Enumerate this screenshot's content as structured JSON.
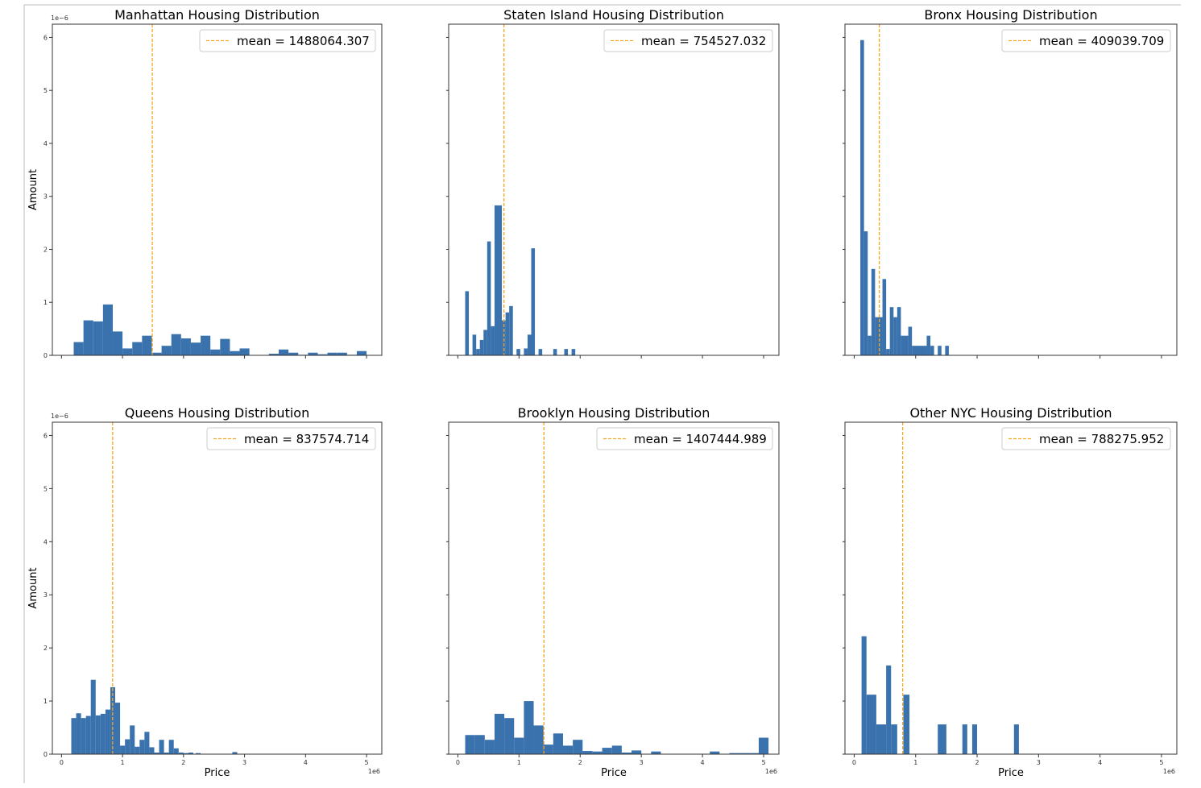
{
  "colors": {
    "bar": "#3a72ad",
    "mean_line": "#f5a623",
    "frame": "#333333"
  },
  "y_offset_label": "1e−6",
  "x_offset_label": "1e6",
  "ylabel": "Amount",
  "xlabel": "Price",
  "chart_data": [
    {
      "type": "bar",
      "title": "Manhattan Housing Distribution",
      "legend": "mean = 1488064.307",
      "legend_position": "top-right",
      "mean": 1488064.307,
      "xlim": [
        -0.15,
        5.25
      ],
      "ylim": [
        0,
        6.25
      ],
      "xticks": [],
      "yticks": [
        0,
        1,
        2,
        3,
        4,
        5,
        6
      ],
      "show_ylabel": true,
      "show_xlabel": false,
      "bins": [
        [
          0.2,
          0.36,
          0.25
        ],
        [
          0.36,
          0.52,
          0.66
        ],
        [
          0.52,
          0.68,
          0.64
        ],
        [
          0.68,
          0.84,
          0.96
        ],
        [
          0.84,
          1.0,
          0.45
        ],
        [
          1.0,
          1.16,
          0.13
        ],
        [
          1.16,
          1.32,
          0.25
        ],
        [
          1.32,
          1.48,
          0.37
        ],
        [
          1.48,
          1.64,
          0.05
        ],
        [
          1.64,
          1.8,
          0.18
        ],
        [
          1.8,
          1.96,
          0.4
        ],
        [
          1.96,
          2.12,
          0.32
        ],
        [
          2.12,
          2.28,
          0.24
        ],
        [
          2.28,
          2.44,
          0.37
        ],
        [
          2.44,
          2.6,
          0.11
        ],
        [
          2.6,
          2.76,
          0.31
        ],
        [
          2.76,
          2.92,
          0.08
        ],
        [
          2.92,
          3.08,
          0.13
        ],
        [
          3.4,
          3.56,
          0.03
        ],
        [
          3.56,
          3.72,
          0.11
        ],
        [
          3.72,
          3.88,
          0.05
        ],
        [
          3.88,
          4.04,
          0.01
        ],
        [
          4.04,
          4.2,
          0.05
        ],
        [
          4.2,
          4.36,
          0.02
        ],
        [
          4.36,
          4.52,
          0.05
        ],
        [
          4.52,
          4.68,
          0.05
        ],
        [
          4.68,
          4.84,
          0.01
        ],
        [
          4.84,
          5.0,
          0.08
        ]
      ]
    },
    {
      "type": "bar",
      "title": "Staten Island Housing Distribution",
      "legend": "mean = 754527.032",
      "legend_position": "top-right",
      "mean": 754527.032,
      "xlim": [
        -0.15,
        5.25
      ],
      "ylim": [
        0,
        6.25
      ],
      "xticks": [],
      "yticks": [],
      "show_ylabel": false,
      "show_xlabel": false,
      "bins": [
        [
          0.12,
          0.18,
          1.21
        ],
        [
          0.18,
          0.24,
          0.0
        ],
        [
          0.24,
          0.3,
          0.39
        ],
        [
          0.3,
          0.36,
          0.12
        ],
        [
          0.36,
          0.42,
          0.29
        ],
        [
          0.42,
          0.48,
          0.48
        ],
        [
          0.48,
          0.54,
          2.15
        ],
        [
          0.54,
          0.6,
          0.55
        ],
        [
          0.6,
          0.72,
          2.83
        ],
        [
          0.72,
          0.78,
          0.66
        ],
        [
          0.78,
          0.84,
          0.81
        ],
        [
          0.84,
          0.9,
          0.93
        ],
        [
          0.96,
          1.02,
          0.12
        ],
        [
          1.08,
          1.14,
          0.13
        ],
        [
          1.14,
          1.2,
          0.39
        ],
        [
          1.2,
          1.26,
          2.02
        ],
        [
          1.32,
          1.38,
          0.12
        ],
        [
          1.56,
          1.62,
          0.12
        ],
        [
          1.74,
          1.8,
          0.12
        ],
        [
          1.86,
          1.92,
          0.12
        ]
      ]
    },
    {
      "type": "bar",
      "title": "Bronx Housing Distribution",
      "legend": "mean = 409039.709",
      "legend_position": "top-right",
      "mean": 409039.709,
      "xlim": [
        -0.15,
        5.25
      ],
      "ylim": [
        0,
        6.25
      ],
      "xticks": [],
      "yticks": [],
      "show_ylabel": false,
      "show_xlabel": false,
      "bins": [
        [
          0.1,
          0.16,
          5.95
        ],
        [
          0.16,
          0.22,
          2.34
        ],
        [
          0.22,
          0.28,
          0.37
        ],
        [
          0.28,
          0.34,
          1.63
        ],
        [
          0.34,
          0.46,
          0.72
        ],
        [
          0.46,
          0.52,
          1.44
        ],
        [
          0.52,
          0.58,
          0.12
        ],
        [
          0.58,
          0.64,
          0.91
        ],
        [
          0.64,
          0.7,
          0.72
        ],
        [
          0.7,
          0.76,
          0.91
        ],
        [
          0.76,
          0.82,
          0.37
        ],
        [
          0.82,
          0.88,
          0.37
        ],
        [
          0.88,
          0.94,
          0.54
        ],
        [
          0.94,
          1.18,
          0.18
        ],
        [
          1.18,
          1.24,
          0.37
        ],
        [
          1.24,
          1.3,
          0.18
        ],
        [
          1.36,
          1.42,
          0.18
        ],
        [
          1.48,
          1.54,
          0.18
        ]
      ]
    },
    {
      "type": "bar",
      "title": "Queens Housing Distribution",
      "legend": "mean = 837574.714",
      "legend_position": "top-right",
      "mean": 837574.714,
      "xlim": [
        -0.15,
        5.25
      ],
      "ylim": [
        0,
        6.25
      ],
      "xticks": [
        0,
        1,
        2,
        3,
        4,
        5
      ],
      "yticks": [
        0,
        1,
        2,
        3,
        4,
        5,
        6
      ],
      "show_ylabel": true,
      "show_xlabel": true,
      "bins": [
        [
          0.16,
          0.24,
          0.68
        ],
        [
          0.24,
          0.32,
          0.77
        ],
        [
          0.32,
          0.4,
          0.68
        ],
        [
          0.4,
          0.48,
          0.72
        ],
        [
          0.48,
          0.56,
          1.4
        ],
        [
          0.56,
          0.64,
          0.73
        ],
        [
          0.64,
          0.72,
          0.76
        ],
        [
          0.72,
          0.8,
          0.84
        ],
        [
          0.8,
          0.88,
          1.26
        ],
        [
          0.88,
          0.96,
          0.97
        ],
        [
          0.96,
          1.04,
          0.16
        ],
        [
          1.04,
          1.12,
          0.28
        ],
        [
          1.12,
          1.2,
          0.54
        ],
        [
          1.2,
          1.28,
          0.14
        ],
        [
          1.28,
          1.36,
          0.27
        ],
        [
          1.36,
          1.44,
          0.42
        ],
        [
          1.44,
          1.52,
          0.13
        ],
        [
          1.52,
          1.6,
          0.03
        ],
        [
          1.6,
          1.68,
          0.27
        ],
        [
          1.68,
          1.76,
          0.03
        ],
        [
          1.76,
          1.84,
          0.27
        ],
        [
          1.84,
          1.92,
          0.11
        ],
        [
          1.92,
          2.0,
          0.03
        ],
        [
          2.0,
          2.08,
          0.02
        ],
        [
          2.08,
          2.16,
          0.03
        ],
        [
          2.2,
          2.28,
          0.02
        ],
        [
          2.8,
          2.88,
          0.04
        ]
      ]
    },
    {
      "type": "bar",
      "title": "Brooklyn Housing Distribution",
      "legend": "mean = 1407444.989",
      "legend_position": "top-right",
      "mean": 1407444.989,
      "xlim": [
        -0.15,
        5.25
      ],
      "ylim": [
        0,
        6.25
      ],
      "xticks": [
        0,
        1,
        2,
        3,
        4,
        5
      ],
      "yticks": [],
      "show_ylabel": false,
      "show_xlabel": true,
      "bins": [
        [
          0.12,
          0.28,
          0.36
        ],
        [
          0.28,
          0.44,
          0.36
        ],
        [
          0.44,
          0.6,
          0.27
        ],
        [
          0.6,
          0.76,
          0.76
        ],
        [
          0.76,
          0.92,
          0.68
        ],
        [
          0.92,
          1.08,
          0.31
        ],
        [
          1.08,
          1.24,
          1.0
        ],
        [
          1.24,
          1.4,
          0.54
        ],
        [
          1.4,
          1.56,
          0.18
        ],
        [
          1.56,
          1.72,
          0.39
        ],
        [
          1.72,
          1.88,
          0.16
        ],
        [
          1.88,
          2.04,
          0.27
        ],
        [
          2.04,
          2.2,
          0.06
        ],
        [
          2.2,
          2.36,
          0.05
        ],
        [
          2.36,
          2.52,
          0.12
        ],
        [
          2.52,
          2.68,
          0.16
        ],
        [
          2.68,
          2.84,
          0.03
        ],
        [
          2.84,
          3.0,
          0.07
        ],
        [
          3.16,
          3.32,
          0.05
        ],
        [
          4.12,
          4.28,
          0.05
        ],
        [
          4.44,
          4.6,
          0.02
        ],
        [
          4.6,
          4.76,
          0.02
        ],
        [
          4.76,
          4.92,
          0.02
        ],
        [
          4.92,
          5.08,
          0.31
        ]
      ]
    },
    {
      "type": "bar",
      "title": "Other NYC Housing Distribution",
      "legend": "mean = 788275.952",
      "legend_position": "top-right",
      "mean": 788275.952,
      "xlim": [
        -0.15,
        5.25
      ],
      "ylim": [
        0,
        6.25
      ],
      "xticks": [
        0,
        1,
        2,
        3,
        4,
        5
      ],
      "yticks": [],
      "show_ylabel": false,
      "show_xlabel": true,
      "bins": [
        [
          0.12,
          0.2,
          2.22
        ],
        [
          0.2,
          0.36,
          1.12
        ],
        [
          0.36,
          0.52,
          0.56
        ],
        [
          0.52,
          0.6,
          1.67
        ],
        [
          0.6,
          0.7,
          0.56
        ],
        [
          0.8,
          0.9,
          1.12
        ],
        [
          1.36,
          1.5,
          0.56
        ],
        [
          1.76,
          1.84,
          0.56
        ],
        [
          1.92,
          2.0,
          0.56
        ],
        [
          2.6,
          2.68,
          0.56
        ]
      ]
    }
  ]
}
